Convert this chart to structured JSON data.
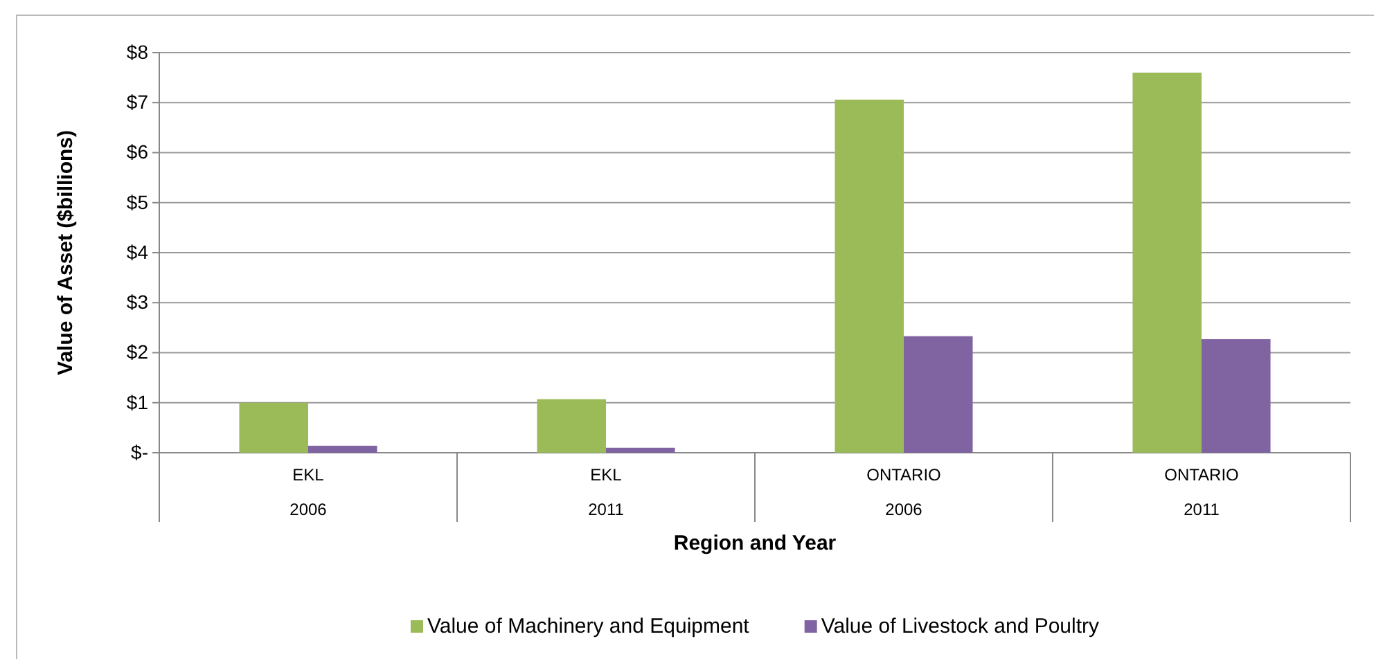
{
  "chart_data": {
    "type": "bar",
    "xlabel": "Region and Year",
    "ylabel": "Value of Asset ($billions)",
    "categories": [
      "EKL\n2006",
      "EKL\n2011",
      "ONTARIO\n2006",
      "ONTARIO\n2011"
    ],
    "series": [
      {
        "name": "Value of Machinery and Equipment",
        "color": "#9bbb59",
        "values": [
          1.0,
          1.07,
          7.06,
          7.6
        ]
      },
      {
        "name": "Value of Livestock and Poultry",
        "color": "#8064a2",
        "values": [
          0.14,
          0.1,
          2.33,
          2.27
        ]
      }
    ],
    "ylim": [
      0,
      8
    ],
    "yticks": [
      {
        "value": 0,
        "label": "$-"
      },
      {
        "value": 1,
        "label": "$1"
      },
      {
        "value": 2,
        "label": "$2"
      },
      {
        "value": 3,
        "label": "$3"
      },
      {
        "value": 4,
        "label": "$4"
      },
      {
        "value": 5,
        "label": "$5"
      },
      {
        "value": 6,
        "label": "$6"
      },
      {
        "value": 7,
        "label": "$7"
      },
      {
        "value": 8,
        "label": "$8"
      }
    ],
    "grid": "y",
    "legend": "bottom"
  }
}
